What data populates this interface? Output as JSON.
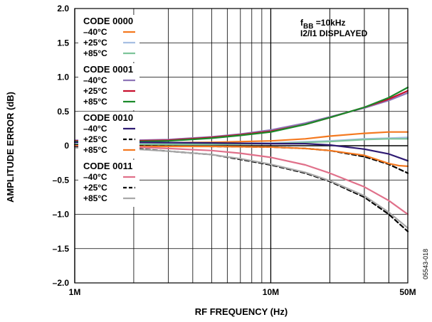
{
  "chart_data": {
    "type": "line",
    "xlabel": "RF FREQUENCY (Hz)",
    "ylabel": "AMPLITUDE ERROR (dB)",
    "x_scale": "log",
    "xlim": [
      1000000,
      50000000
    ],
    "ylim": [
      -2.0,
      2.0
    ],
    "grid": true,
    "x_ticks": [
      {
        "value": 1000000,
        "label": "1M"
      },
      {
        "value": 10000000,
        "label": "10M"
      },
      {
        "value": 50000000,
        "label": "50M"
      }
    ],
    "y_ticks": [
      {
        "value": 2.0,
        "label": "2.0"
      },
      {
        "value": 1.5,
        "label": "1.5"
      },
      {
        "value": 1.0,
        "label": "1.0"
      },
      {
        "value": 0.5,
        "label": "0.5"
      },
      {
        "value": 0,
        "label": "0"
      },
      {
        "value": -0.5,
        "label": "–0.5"
      },
      {
        "value": -1.0,
        "label": "–1.0"
      },
      {
        "value": -1.5,
        "label": "–1.5"
      },
      {
        "value": -2.0,
        "label": "–2.0"
      }
    ],
    "annotation": {
      "line1_main": "f",
      "line1_sub": "BB",
      "line1_rest": " =10kHz",
      "line2": "I2/I1 DISPLAYED"
    },
    "figure_id": "05543-018",
    "legend_groups": [
      {
        "title": "CODE 0000",
        "items": [
          {
            "label": "–40°C",
            "color": "#f47920",
            "dash": false
          },
          {
            "label": "+25°C",
            "color": "#a7bfe2",
            "dash": false
          },
          {
            "label": "+85°C",
            "color": "#7dc49a",
            "dash": false
          }
        ]
      },
      {
        "title": "CODE 0001",
        "items": [
          {
            "label": "–40°C",
            "color": "#8e76b8",
            "dash": false
          },
          {
            "label": "+25°C",
            "color": "#c8102e",
            "dash": false
          },
          {
            "label": "+85°C",
            "color": "#1a8a2a",
            "dash": false
          }
        ]
      },
      {
        "title": "CODE 0010",
        "items": [
          {
            "label": "–40°C",
            "color": "#2e1a72",
            "dash": false
          },
          {
            "label": "+25°C",
            "color": "#000000",
            "dash": true
          },
          {
            "label": "+85°C",
            "color": "#f47920",
            "dash": false
          }
        ]
      },
      {
        "title": "CODE 0011",
        "items": [
          {
            "label": "–40°C",
            "color": "#e0708a",
            "dash": false
          },
          {
            "label": "+25°C",
            "color": "#000000",
            "dash": true
          },
          {
            "label": "+85°C",
            "color": "#a8a8a8",
            "dash": false
          }
        ]
      }
    ],
    "series": [
      {
        "code": "0000",
        "temp": "-40C",
        "color": "#f47920",
        "dash": false,
        "x": [
          1000000,
          2000000,
          5000000,
          10000000,
          15000000,
          20000000,
          30000000,
          40000000,
          50000000
        ],
        "y": [
          0.04,
          0.04,
          0.05,
          0.07,
          0.1,
          0.14,
          0.18,
          0.2,
          0.2
        ]
      },
      {
        "code": "0000",
        "temp": "+25C",
        "color": "#a7bfe2",
        "dash": false,
        "x": [
          1000000,
          2000000,
          5000000,
          10000000,
          20000000,
          30000000,
          40000000,
          50000000
        ],
        "y": [
          0.03,
          0.03,
          0.03,
          0.04,
          0.07,
          0.1,
          0.11,
          0.12
        ]
      },
      {
        "code": "0000",
        "temp": "+85C",
        "color": "#7dc49a",
        "dash": false,
        "x": [
          1000000,
          2000000,
          5000000,
          10000000,
          20000000,
          30000000,
          40000000,
          50000000
        ],
        "y": [
          0.02,
          0.02,
          0.02,
          0.03,
          0.06,
          0.09,
          0.1,
          0.1
        ]
      },
      {
        "code": "0001",
        "temp": "-40C",
        "color": "#8e76b8",
        "dash": false,
        "x": [
          1000000,
          2000000,
          3000000,
          5000000,
          7000000,
          10000000,
          15000000,
          20000000,
          30000000,
          40000000,
          50000000
        ],
        "y": [
          0.08,
          0.08,
          0.09,
          0.13,
          0.17,
          0.23,
          0.33,
          0.42,
          0.55,
          0.66,
          0.77
        ]
      },
      {
        "code": "0001",
        "temp": "+25C",
        "color": "#c8102e",
        "dash": false,
        "x": [
          1000000,
          2000000,
          3000000,
          5000000,
          7000000,
          10000000,
          15000000,
          20000000,
          30000000,
          40000000,
          50000000
        ],
        "y": [
          0.07,
          0.07,
          0.08,
          0.12,
          0.16,
          0.21,
          0.31,
          0.41,
          0.56,
          0.68,
          0.8
        ]
      },
      {
        "code": "0001",
        "temp": "+85C",
        "color": "#1a8a2a",
        "dash": false,
        "x": [
          1000000,
          2000000,
          3000000,
          5000000,
          7000000,
          10000000,
          15000000,
          20000000,
          30000000,
          40000000,
          50000000
        ],
        "y": [
          0.06,
          0.06,
          0.07,
          0.11,
          0.15,
          0.2,
          0.31,
          0.41,
          0.56,
          0.7,
          0.85
        ]
      },
      {
        "code": "0010",
        "temp": "-40C",
        "color": "#2e1a72",
        "dash": false,
        "x": [
          1000000,
          2000000,
          5000000,
          10000000,
          15000000,
          20000000,
          30000000,
          40000000,
          50000000
        ],
        "y": [
          0.05,
          0.05,
          0.04,
          0.03,
          0.03,
          0.01,
          -0.05,
          -0.12,
          -0.22
        ]
      },
      {
        "code": "0010",
        "temp": "+25C",
        "color": "#000000",
        "dash": true,
        "x": [
          1000000,
          2000000,
          5000000,
          10000000,
          15000000,
          20000000,
          30000000,
          40000000,
          50000000
        ],
        "y": [
          0.01,
          0.0,
          -0.01,
          -0.02,
          -0.04,
          -0.07,
          -0.16,
          -0.27,
          -0.4
        ]
      },
      {
        "code": "0010",
        "temp": "+85C",
        "color": "#f47920",
        "dash": false,
        "x": [
          1000000,
          2000000,
          5000000,
          10000000,
          15000000,
          20000000,
          30000000,
          40000000,
          45000000,
          50000000
        ],
        "y": [
          0.0,
          -0.01,
          -0.01,
          -0.02,
          -0.04,
          -0.07,
          -0.14,
          -0.26,
          -0.29,
          -0.3
        ]
      },
      {
        "code": "0011",
        "temp": "-40C",
        "color": "#e0708a",
        "dash": false,
        "x": [
          1000000,
          2000000,
          3000000,
          5000000,
          7000000,
          10000000,
          15000000,
          20000000,
          30000000,
          40000000,
          50000000
        ],
        "y": [
          -0.01,
          -0.02,
          -0.04,
          -0.07,
          -0.11,
          -0.17,
          -0.28,
          -0.4,
          -0.6,
          -0.8,
          -1.0
        ]
      },
      {
        "code": "0011",
        "temp": "+25C",
        "color": "#000000",
        "dash": true,
        "x": [
          1000000,
          2000000,
          3000000,
          5000000,
          7000000,
          10000000,
          15000000,
          20000000,
          30000000,
          40000000,
          50000000
        ],
        "y": [
          -0.02,
          -0.04,
          -0.08,
          -0.13,
          -0.2,
          -0.28,
          -0.4,
          -0.52,
          -0.75,
          -1.0,
          -1.25
        ]
      },
      {
        "code": "0011",
        "temp": "+85C",
        "color": "#a8a8a8",
        "dash": false,
        "x": [
          1000000,
          2000000,
          3000000,
          5000000,
          7000000,
          10000000,
          15000000,
          20000000,
          30000000,
          40000000,
          50000000
        ],
        "y": [
          -0.03,
          -0.05,
          -0.08,
          -0.13,
          -0.19,
          -0.27,
          -0.39,
          -0.51,
          -0.73,
          -0.97,
          -1.2
        ]
      }
    ]
  }
}
